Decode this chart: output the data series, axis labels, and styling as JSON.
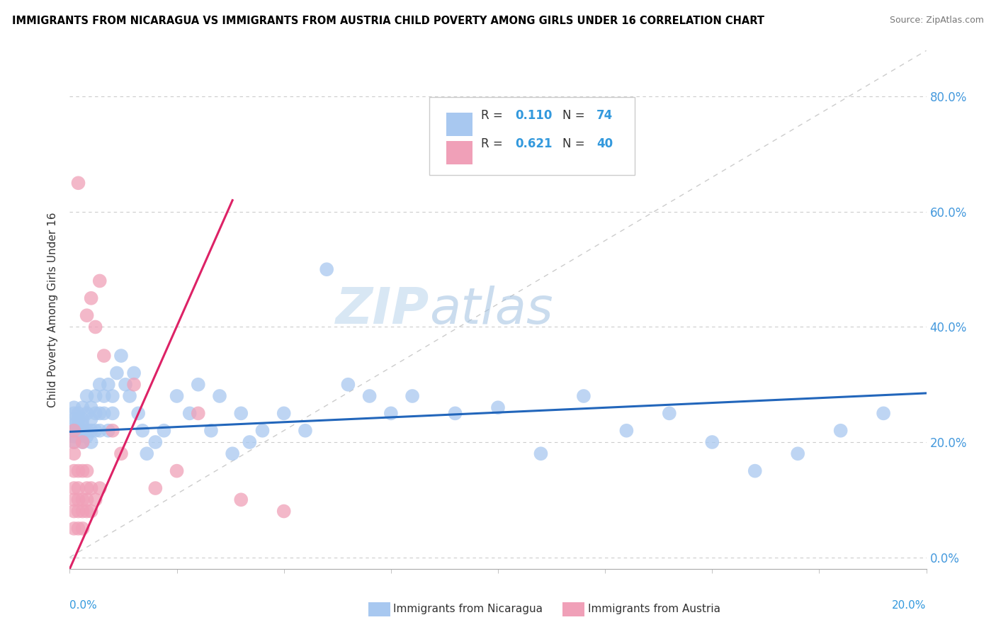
{
  "title": "IMMIGRANTS FROM NICARAGUA VS IMMIGRANTS FROM AUSTRIA CHILD POVERTY AMONG GIRLS UNDER 16 CORRELATION CHART",
  "source": "Source: ZipAtlas.com",
  "ylabel": "Child Poverty Among Girls Under 16",
  "ytick_vals": [
    0.0,
    0.2,
    0.4,
    0.6,
    0.8
  ],
  "xlim": [
    0.0,
    0.2
  ],
  "ylim": [
    -0.02,
    0.88
  ],
  "r_nicaragua": 0.11,
  "n_nicaragua": 74,
  "r_austria": 0.621,
  "n_austria": 40,
  "color_nicaragua": "#a8c8f0",
  "color_austria": "#f0a0b8",
  "color_trendline_nicaragua": "#2266bb",
  "color_trendline_austria": "#dd2266",
  "color_refline": "#cccccc",
  "watermark_zip": "ZIP",
  "watermark_atlas": "atlas",
  "blue_x": [
    0.001,
    0.001,
    0.001,
    0.001,
    0.001,
    0.001,
    0.001,
    0.002,
    0.002,
    0.002,
    0.002,
    0.002,
    0.003,
    0.003,
    0.003,
    0.003,
    0.003,
    0.004,
    0.004,
    0.004,
    0.004,
    0.005,
    0.005,
    0.005,
    0.005,
    0.006,
    0.006,
    0.006,
    0.007,
    0.007,
    0.007,
    0.008,
    0.008,
    0.009,
    0.009,
    0.01,
    0.01,
    0.011,
    0.012,
    0.013,
    0.014,
    0.015,
    0.016,
    0.017,
    0.018,
    0.02,
    0.022,
    0.025,
    0.028,
    0.03,
    0.033,
    0.035,
    0.038,
    0.04,
    0.042,
    0.045,
    0.05,
    0.055,
    0.06,
    0.065,
    0.07,
    0.075,
    0.08,
    0.09,
    0.1,
    0.11,
    0.12,
    0.13,
    0.14,
    0.15,
    0.16,
    0.17,
    0.18,
    0.19
  ],
  "blue_y": [
    0.22,
    0.24,
    0.26,
    0.21,
    0.23,
    0.2,
    0.25,
    0.22,
    0.24,
    0.21,
    0.23,
    0.25,
    0.22,
    0.26,
    0.2,
    0.24,
    0.23,
    0.25,
    0.21,
    0.22,
    0.28,
    0.24,
    0.2,
    0.22,
    0.26,
    0.25,
    0.28,
    0.22,
    0.3,
    0.25,
    0.22,
    0.28,
    0.25,
    0.3,
    0.22,
    0.28,
    0.25,
    0.32,
    0.35,
    0.3,
    0.28,
    0.32,
    0.25,
    0.22,
    0.18,
    0.2,
    0.22,
    0.28,
    0.25,
    0.3,
    0.22,
    0.28,
    0.18,
    0.25,
    0.2,
    0.22,
    0.25,
    0.22,
    0.5,
    0.3,
    0.28,
    0.25,
    0.28,
    0.25,
    0.26,
    0.18,
    0.28,
    0.22,
    0.25,
    0.2,
    0.15,
    0.18,
    0.22,
    0.25
  ],
  "pink_x": [
    0.001,
    0.001,
    0.001,
    0.001,
    0.001,
    0.001,
    0.001,
    0.001,
    0.002,
    0.002,
    0.002,
    0.002,
    0.002,
    0.002,
    0.003,
    0.003,
    0.003,
    0.003,
    0.003,
    0.004,
    0.004,
    0.004,
    0.004,
    0.004,
    0.005,
    0.005,
    0.005,
    0.006,
    0.006,
    0.007,
    0.007,
    0.008,
    0.01,
    0.012,
    0.015,
    0.02,
    0.025,
    0.03,
    0.04,
    0.05
  ],
  "pink_y": [
    0.05,
    0.08,
    0.1,
    0.12,
    0.15,
    0.18,
    0.2,
    0.22,
    0.05,
    0.08,
    0.1,
    0.12,
    0.15,
    0.65,
    0.05,
    0.08,
    0.1,
    0.15,
    0.2,
    0.08,
    0.1,
    0.12,
    0.15,
    0.42,
    0.08,
    0.12,
    0.45,
    0.1,
    0.4,
    0.12,
    0.48,
    0.35,
    0.22,
    0.18,
    0.3,
    0.12,
    0.15,
    0.25,
    0.1,
    0.08
  ],
  "blue_trend_x": [
    0.0,
    0.2
  ],
  "blue_trend_y": [
    0.218,
    0.285
  ],
  "pink_trend_x": [
    0.0,
    0.038
  ],
  "pink_trend_y": [
    -0.02,
    0.62
  ]
}
